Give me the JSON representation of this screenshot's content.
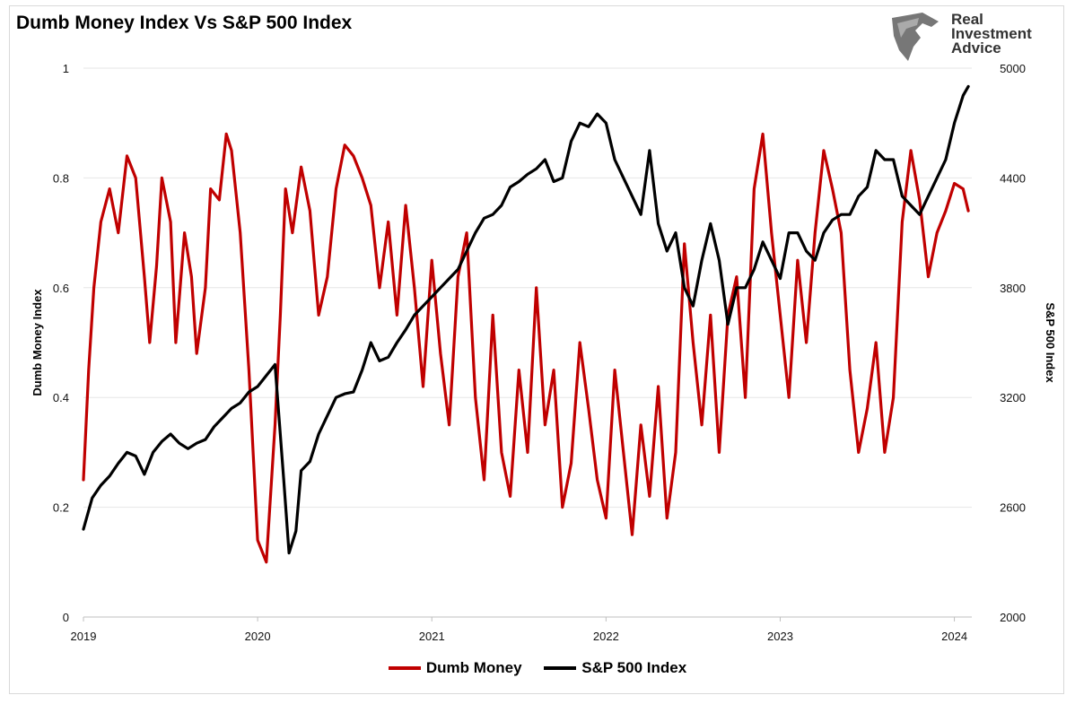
{
  "chart_data": {
    "type": "line",
    "title": "Dumb Money Index Vs S&P 500 Index",
    "ylabel": "Dumb Money Index",
    "y2label": "S&P 500 Index",
    "xlim": [
      2019.0,
      2024.1
    ],
    "ylim": [
      0,
      1
    ],
    "y2lim": [
      2000,
      5000
    ],
    "x_ticks": [
      "2019",
      "2020",
      "2021",
      "2022",
      "2023",
      "2024"
    ],
    "y_ticks": [
      "0",
      "0.2",
      "0.4",
      "0.6",
      "0.8",
      "1"
    ],
    "y2_ticks": [
      "2000",
      "2600",
      "3200",
      "3800",
      "4400",
      "5000"
    ],
    "grid": "horizontal",
    "legend": "bottom-center",
    "series": [
      {
        "name": "Dumb Money",
        "axis": "left",
        "color": "#c00000",
        "x": [
          2019.0,
          2019.03,
          2019.06,
          2019.1,
          2019.15,
          2019.2,
          2019.25,
          2019.3,
          2019.35,
          2019.38,
          2019.42,
          2019.45,
          2019.5,
          2019.53,
          2019.58,
          2019.62,
          2019.65,
          2019.7,
          2019.73,
          2019.78,
          2019.82,
          2019.85,
          2019.9,
          2019.95,
          2020.0,
          2020.05,
          2020.1,
          2020.13,
          2020.16,
          2020.2,
          2020.25,
          2020.3,
          2020.35,
          2020.4,
          2020.45,
          2020.5,
          2020.55,
          2020.6,
          2020.65,
          2020.7,
          2020.75,
          2020.8,
          2020.85,
          2020.9,
          2020.95,
          2021.0,
          2021.05,
          2021.1,
          2021.15,
          2021.2,
          2021.25,
          2021.3,
          2021.35,
          2021.4,
          2021.45,
          2021.5,
          2021.55,
          2021.6,
          2021.65,
          2021.7,
          2021.75,
          2021.8,
          2021.85,
          2021.9,
          2021.95,
          2022.0,
          2022.05,
          2022.1,
          2022.15,
          2022.2,
          2022.25,
          2022.3,
          2022.35,
          2022.4,
          2022.45,
          2022.5,
          2022.55,
          2022.6,
          2022.65,
          2022.7,
          2022.75,
          2022.8,
          2022.85,
          2022.9,
          2022.95,
          2023.0,
          2023.05,
          2023.1,
          2023.15,
          2023.2,
          2023.25,
          2023.3,
          2023.35,
          2023.4,
          2023.45,
          2023.5,
          2023.55,
          2023.6,
          2023.65,
          2023.7,
          2023.75,
          2023.8,
          2023.85,
          2023.9,
          2023.95,
          2024.0,
          2024.05,
          2024.08
        ],
        "values": [
          0.25,
          0.45,
          0.6,
          0.72,
          0.78,
          0.7,
          0.84,
          0.8,
          0.62,
          0.5,
          0.64,
          0.8,
          0.72,
          0.5,
          0.7,
          0.62,
          0.48,
          0.6,
          0.78,
          0.76,
          0.88,
          0.85,
          0.7,
          0.45,
          0.14,
          0.1,
          0.35,
          0.55,
          0.78,
          0.7,
          0.82,
          0.74,
          0.55,
          0.62,
          0.78,
          0.86,
          0.84,
          0.8,
          0.75,
          0.6,
          0.72,
          0.55,
          0.75,
          0.6,
          0.42,
          0.65,
          0.48,
          0.35,
          0.62,
          0.7,
          0.4,
          0.25,
          0.55,
          0.3,
          0.22,
          0.45,
          0.3,
          0.6,
          0.35,
          0.45,
          0.2,
          0.28,
          0.5,
          0.38,
          0.25,
          0.18,
          0.45,
          0.3,
          0.15,
          0.35,
          0.22,
          0.42,
          0.18,
          0.3,
          0.68,
          0.5,
          0.35,
          0.55,
          0.3,
          0.55,
          0.62,
          0.4,
          0.78,
          0.88,
          0.7,
          0.55,
          0.4,
          0.65,
          0.5,
          0.7,
          0.85,
          0.78,
          0.7,
          0.45,
          0.3,
          0.38,
          0.5,
          0.3,
          0.4,
          0.72,
          0.85,
          0.76,
          0.62,
          0.7,
          0.74,
          0.79,
          0.78,
          0.74
        ]
      },
      {
        "name": "S&P 500 Index",
        "axis": "right",
        "color": "#000000",
        "x": [
          2019.0,
          2019.05,
          2019.1,
          2019.15,
          2019.2,
          2019.25,
          2019.3,
          2019.35,
          2019.4,
          2019.45,
          2019.5,
          2019.55,
          2019.6,
          2019.65,
          2019.7,
          2019.75,
          2019.8,
          2019.85,
          2019.9,
          2019.95,
          2020.0,
          2020.05,
          2020.1,
          2020.15,
          2020.18,
          2020.22,
          2020.25,
          2020.3,
          2020.35,
          2020.4,
          2020.45,
          2020.5,
          2020.55,
          2020.6,
          2020.65,
          2020.7,
          2020.75,
          2020.8,
          2020.85,
          2020.9,
          2020.95,
          2021.0,
          2021.05,
          2021.1,
          2021.15,
          2021.2,
          2021.25,
          2021.3,
          2021.35,
          2021.4,
          2021.45,
          2021.5,
          2021.55,
          2021.6,
          2021.65,
          2021.7,
          2021.75,
          2021.8,
          2021.85,
          2021.9,
          2021.95,
          2022.0,
          2022.05,
          2022.1,
          2022.15,
          2022.2,
          2022.25,
          2022.3,
          2022.35,
          2022.4,
          2022.45,
          2022.5,
          2022.55,
          2022.6,
          2022.65,
          2022.7,
          2022.75,
          2022.8,
          2022.85,
          2022.9,
          2022.95,
          2023.0,
          2023.05,
          2023.1,
          2023.15,
          2023.2,
          2023.25,
          2023.3,
          2023.35,
          2023.4,
          2023.45,
          2023.5,
          2023.55,
          2023.6,
          2023.65,
          2023.7,
          2023.75,
          2023.8,
          2023.85,
          2023.9,
          2023.95,
          2024.0,
          2024.05,
          2024.08
        ],
        "values": [
          2480,
          2650,
          2720,
          2770,
          2840,
          2900,
          2880,
          2780,
          2900,
          2960,
          3000,
          2950,
          2920,
          2950,
          2970,
          3040,
          3090,
          3140,
          3170,
          3230,
          3260,
          3320,
          3380,
          2750,
          2350,
          2470,
          2800,
          2850,
          3000,
          3100,
          3200,
          3220,
          3230,
          3350,
          3500,
          3400,
          3420,
          3500,
          3570,
          3650,
          3700,
          3750,
          3800,
          3850,
          3900,
          4000,
          4100,
          4180,
          4200,
          4250,
          4350,
          4380,
          4420,
          4450,
          4500,
          4380,
          4400,
          4600,
          4700,
          4680,
          4750,
          4700,
          4500,
          4400,
          4300,
          4200,
          4550,
          4150,
          4000,
          4100,
          3800,
          3700,
          3950,
          4150,
          3950,
          3600,
          3800,
          3800,
          3900,
          4050,
          3950,
          3850,
          4100,
          4100,
          4000,
          3950,
          4100,
          4170,
          4200,
          4200,
          4300,
          4350,
          4550,
          4500,
          4500,
          4300,
          4250,
          4200,
          4300,
          4400,
          4500,
          4700,
          4850,
          4900
        ]
      }
    ]
  },
  "logo": {
    "line1": "Real",
    "line2": "Investment",
    "line3": "Advice"
  }
}
